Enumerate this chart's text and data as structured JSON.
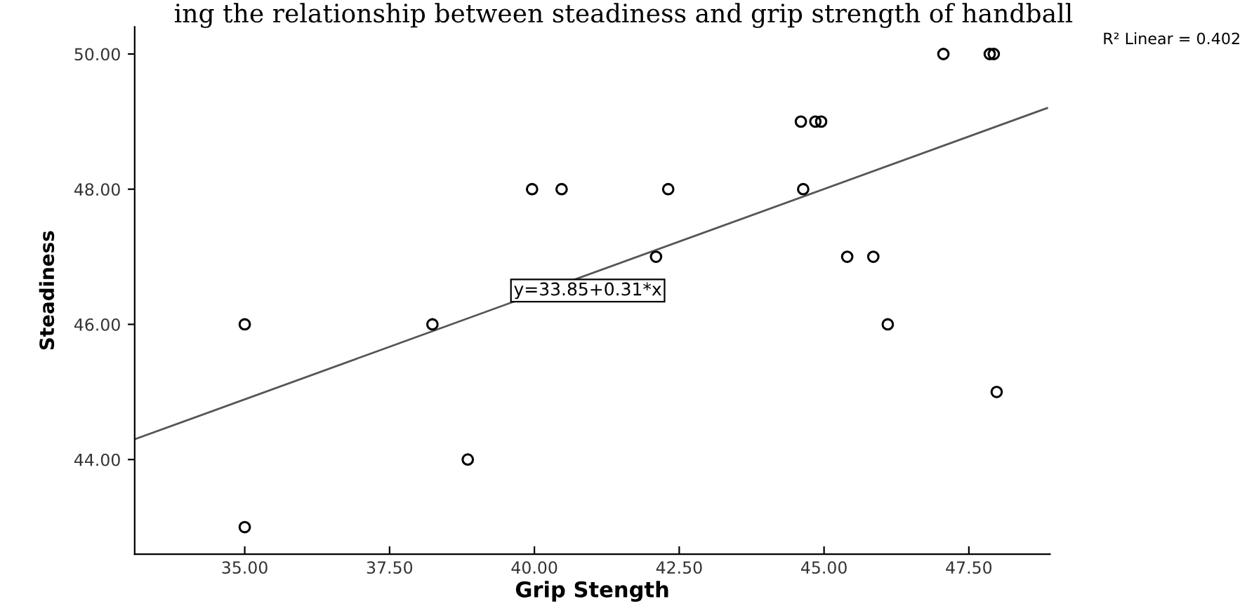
{
  "chart_data": {
    "type": "scatter",
    "title": "ing the relationship between steadiness and grip strength of handball",
    "xlabel": "Grip Stength",
    "ylabel": "Steadiness",
    "series": [
      {
        "color": "#000000",
        "marker": "circle",
        "x": [
          35.0,
          35.0,
          38.24,
          38.85,
          39.96,
          40.47,
          42.31,
          42.1,
          44.64,
          44.6,
          44.85,
          44.95,
          45.4,
          45.85,
          46.1,
          47.98,
          47.06,
          47.86,
          47.93
        ],
        "values": [
          46,
          43,
          46,
          44,
          48,
          48,
          48,
          47,
          48,
          49,
          49,
          49,
          47,
          47,
          46,
          45,
          50,
          50,
          50
        ]
      },
      {
        "type": "line",
        "color": "#555555",
        "line_style": "solid",
        "x": [
          33.1,
          48.85
        ],
        "values": [
          44.3,
          49.2
        ]
      }
    ],
    "annotations": [
      "y=33.85+0.31*x",
      "R² Linear = 0.402"
    ],
    "xlim": [
      33.1,
      48.9
    ],
    "ylim": [
      42.6,
      50.4
    ],
    "xticks": [
      {
        "value": 35,
        "label": "35.00"
      },
      {
        "value": 37.5,
        "label": "37.50"
      },
      {
        "value": 40,
        "label": "40.00"
      },
      {
        "value": 42.5,
        "label": "42.50"
      },
      {
        "value": 45,
        "label": "45.00"
      },
      {
        "value": 47.5,
        "label": "47.50"
      }
    ],
    "yticks": [
      {
        "value": 44,
        "label": "44.00"
      },
      {
        "value": 46,
        "label": "46.00"
      },
      {
        "value": 48,
        "label": "48.00"
      },
      {
        "value": 50,
        "label": "50.00"
      }
    ],
    "grid": false,
    "legend": false
  }
}
